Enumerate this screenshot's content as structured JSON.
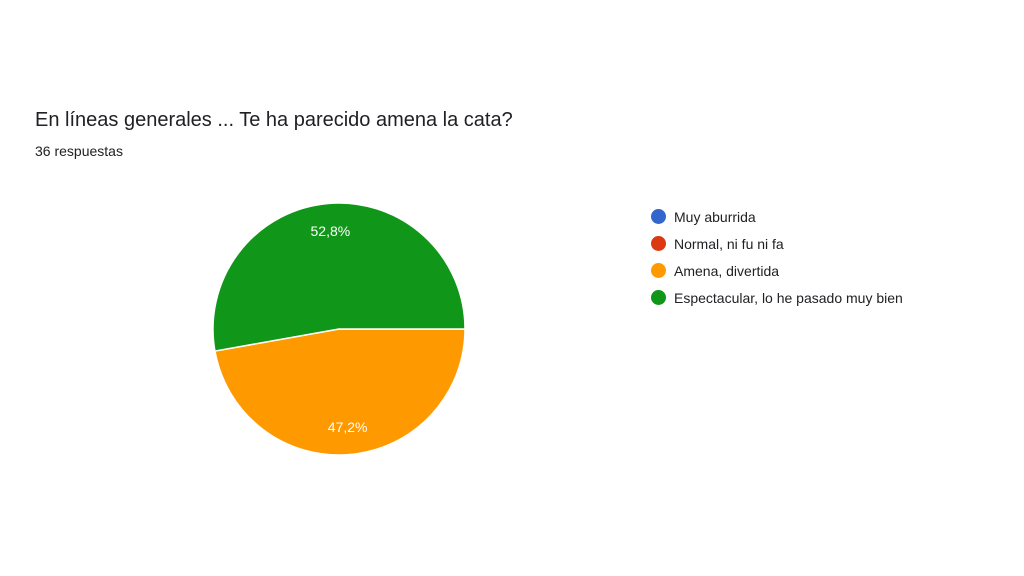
{
  "title": "En líneas generales ... Te ha parecido amena la cata?",
  "subtitle": "36 respuestas",
  "chart_data": {
    "type": "pie",
    "categories": [
      "Muy aburrida",
      "Normal, ni fu ni fa",
      "Amena, divertida",
      "Espectacular, lo he pasado muy bien"
    ],
    "values": [
      0,
      0,
      47.2,
      52.8
    ],
    "labels": [
      "",
      "",
      "47,2%",
      "52,8%"
    ],
    "colors": [
      "#3366cc",
      "#dc3912",
      "#ff9900",
      "#109618"
    ],
    "legend_position": "right"
  }
}
